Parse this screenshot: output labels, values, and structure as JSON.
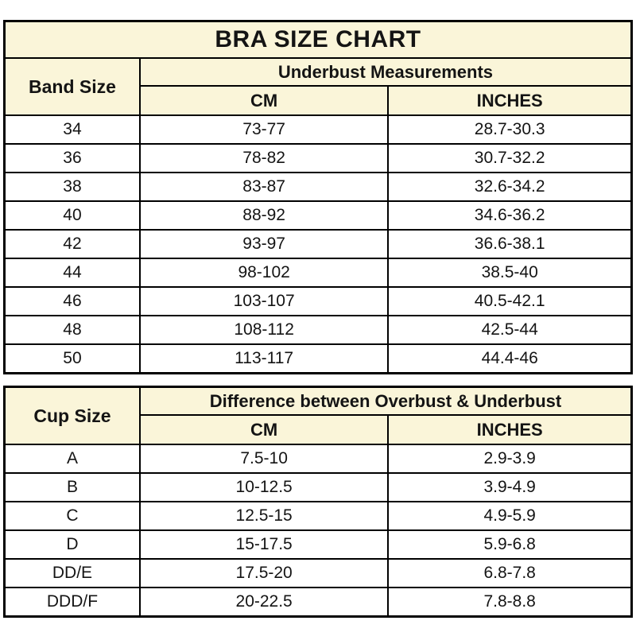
{
  "page": {
    "background": "#ffffff",
    "header_bg": "#faf5d9",
    "border_color": "#000000",
    "text_color": "#141414"
  },
  "title": "BRA SIZE CHART",
  "band_table": {
    "row_header": "Band Size",
    "group_header": "Underbust Measurements",
    "col_cm": "CM",
    "col_inches": "INCHES",
    "rows": [
      {
        "size": "34",
        "cm": "73-77",
        "inches": "28.7-30.3"
      },
      {
        "size": "36",
        "cm": "78-82",
        "inches": "30.7-32.2"
      },
      {
        "size": "38",
        "cm": "83-87",
        "inches": "32.6-34.2"
      },
      {
        "size": "40",
        "cm": "88-92",
        "inches": "34.6-36.2"
      },
      {
        "size": "42",
        "cm": "93-97",
        "inches": "36.6-38.1"
      },
      {
        "size": "44",
        "cm": "98-102",
        "inches": "38.5-40"
      },
      {
        "size": "46",
        "cm": "103-107",
        "inches": "40.5-42.1"
      },
      {
        "size": "48",
        "cm": "108-112",
        "inches": "42.5-44"
      },
      {
        "size": "50",
        "cm": "113-117",
        "inches": "44.4-46"
      }
    ]
  },
  "cup_table": {
    "row_header": "Cup Size",
    "group_header": "Difference between Overbust & Underbust",
    "col_cm": "CM",
    "col_inches": "INCHES",
    "rows": [
      {
        "size": "A",
        "cm": "7.5-10",
        "inches": "2.9-3.9"
      },
      {
        "size": "B",
        "cm": "10-12.5",
        "inches": "3.9-4.9"
      },
      {
        "size": "C",
        "cm": "12.5-15",
        "inches": "4.9-5.9"
      },
      {
        "size": "D",
        "cm": "15-17.5",
        "inches": "5.9-6.8"
      },
      {
        "size": "DD/E",
        "cm": "17.5-20",
        "inches": "6.8-7.8"
      },
      {
        "size": "DDD/F",
        "cm": "20-22.5",
        "inches": "7.8-8.8"
      }
    ]
  }
}
